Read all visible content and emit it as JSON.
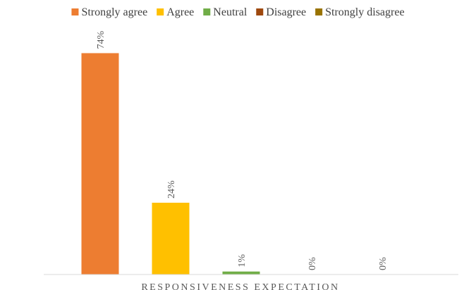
{
  "chart_data": {
    "type": "bar",
    "xlabel": "RESPONSIVENESS EXPECTATION",
    "ylabel": "",
    "categories": [
      "Strongly agree",
      "Agree",
      "Neutral",
      "Disagree",
      "Strongly disagree"
    ],
    "values": [
      74,
      24,
      1,
      0,
      0
    ],
    "data_labels": [
      "74%",
      "24%",
      "1%",
      "0%",
      "0%"
    ],
    "value_unit": "%",
    "ylim": [
      0,
      80
    ],
    "grid": false,
    "legend_position": "top",
    "legend": [
      {
        "label": "Strongly agree",
        "color": "#ED7D31"
      },
      {
        "label": "Agree",
        "color": "#FFC000"
      },
      {
        "label": "Neutral",
        "color": "#70AD47"
      },
      {
        "label": "Disagree",
        "color": "#9E480E"
      },
      {
        "label": "Strongly disagree",
        "color": "#997300"
      }
    ]
  }
}
